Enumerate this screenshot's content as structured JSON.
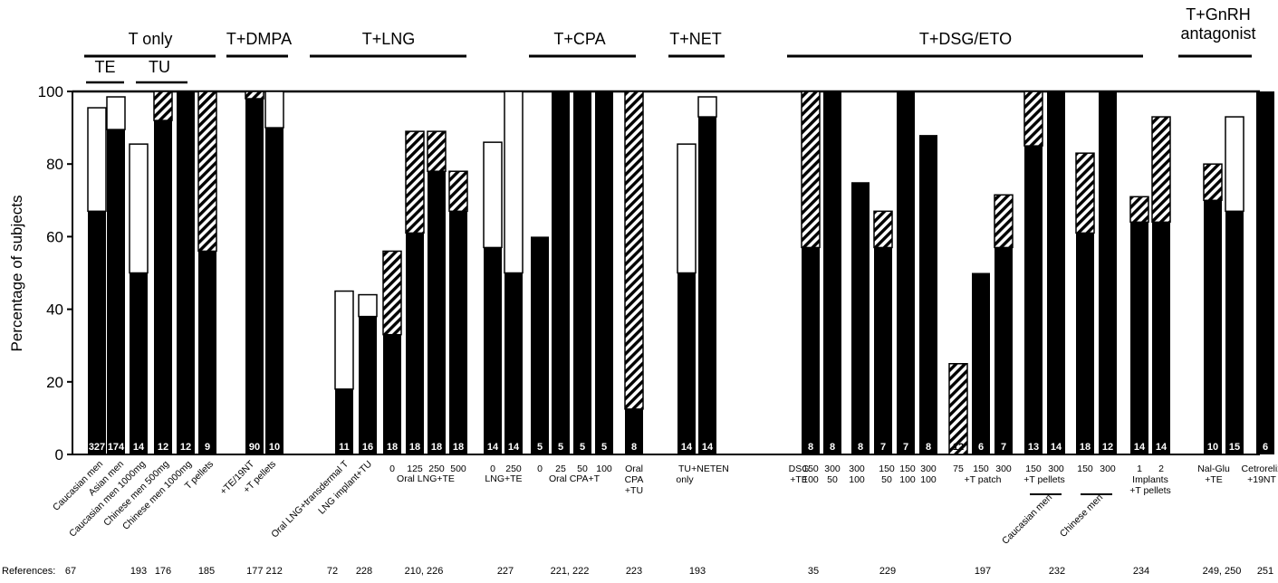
{
  "chart_data": {
    "type": "stacked-bar",
    "ylabel": "Percentage of subjects",
    "ylim": [
      0,
      100
    ],
    "yticks": [
      0,
      20,
      40,
      60,
      80,
      100
    ],
    "references_label": "References:",
    "groups": [
      {
        "title": "T only",
        "subgroups": [
          "TE",
          "TU"
        ]
      },
      {
        "title": "T+DMPA",
        "subgroups": []
      },
      {
        "title": "T+LNG",
        "subgroups": []
      },
      {
        "title": "T+CPA",
        "subgroups": []
      },
      {
        "title": "T+NET",
        "subgroups": []
      },
      {
        "title": "T+DSG/ETO",
        "subgroups": []
      },
      {
        "title": "T+GnRH antagonist",
        "title_lines": [
          "T+GnRH",
          "antagonist"
        ],
        "subgroups": []
      }
    ],
    "series": [
      {
        "name": "solid",
        "color": "#000000"
      },
      {
        "name": "hatched",
        "color": "#000000"
      },
      {
        "name": "open",
        "color": "#ffffff"
      }
    ],
    "bars": [
      {
        "n": "327",
        "solid": 67,
        "hatched": 0,
        "open": 28.5
      },
      {
        "n": "174",
        "solid": 89.5,
        "hatched": 0,
        "open": 9
      },
      {
        "n": "14",
        "solid": 50,
        "hatched": 0,
        "open": 35.5
      },
      {
        "n": "12",
        "solid": 92,
        "hatched": 8,
        "open": 0
      },
      {
        "n": "12",
        "solid": 100,
        "hatched": 0,
        "open": 0
      },
      {
        "n": "9",
        "solid": 56,
        "hatched": 44,
        "open": 0
      },
      {
        "n": "90",
        "solid": 98,
        "hatched": 2,
        "open": 0
      },
      {
        "n": "10",
        "solid": 90,
        "hatched": 0,
        "open": 10
      },
      {
        "n": "11",
        "solid": 18,
        "hatched": 0,
        "open": 27
      },
      {
        "n": "16",
        "solid": 38,
        "hatched": 0,
        "open": 6
      },
      {
        "n": "18",
        "solid": 33,
        "hatched": 23,
        "open": 0
      },
      {
        "n": "18",
        "solid": 61,
        "hatched": 28,
        "open": 0
      },
      {
        "n": "18",
        "solid": 78,
        "hatched": 11,
        "open": 0
      },
      {
        "n": "18",
        "solid": 67,
        "hatched": 11,
        "open": 0
      },
      {
        "n": "14",
        "solid": 57,
        "hatched": 0,
        "open": 29
      },
      {
        "n": "14",
        "solid": 50,
        "hatched": 0,
        "open": 50
      },
      {
        "n": "5",
        "solid": 60,
        "hatched": 0,
        "open": 0
      },
      {
        "n": "5",
        "solid": 100,
        "hatched": 0,
        "open": 0
      },
      {
        "n": "5",
        "solid": 100,
        "hatched": 0,
        "open": 0
      },
      {
        "n": "5",
        "solid": 100,
        "hatched": 0,
        "open": 0
      },
      {
        "n": "8",
        "solid": 12.5,
        "hatched": 87.5,
        "open": 0
      },
      {
        "n": "14",
        "solid": 50,
        "hatched": 0,
        "open": 35.5
      },
      {
        "n": "14",
        "solid": 93,
        "hatched": 0,
        "open": 5.5
      },
      {
        "n": "8",
        "solid": 57,
        "hatched": 43,
        "open": 0
      },
      {
        "n": "8",
        "solid": 100,
        "hatched": 0,
        "open": 0
      },
      {
        "n": "8",
        "solid": 75,
        "hatched": 0,
        "open": 0
      },
      {
        "n": "7",
        "solid": 57,
        "hatched": 10,
        "open": 0
      },
      {
        "n": "7",
        "solid": 100,
        "hatched": 0,
        "open": 0
      },
      {
        "n": "8",
        "solid": 88,
        "hatched": 0,
        "open": 0
      },
      {
        "n": "12",
        "solid": 0,
        "hatched": 25,
        "open": 0
      },
      {
        "n": "6",
        "solid": 50,
        "hatched": 0,
        "open": 0
      },
      {
        "n": "7",
        "solid": 57,
        "hatched": 14.5,
        "open": 0
      },
      {
        "n": "13",
        "solid": 85,
        "hatched": 15,
        "open": 0
      },
      {
        "n": "14",
        "solid": 100,
        "hatched": 0,
        "open": 0
      },
      {
        "n": "18",
        "solid": 61,
        "hatched": 22,
        "open": 0
      },
      {
        "n": "12",
        "solid": 100,
        "hatched": 0,
        "open": 0
      },
      {
        "n": "14",
        "solid": 64,
        "hatched": 7,
        "open": 0
      },
      {
        "n": "14",
        "solid": 64,
        "hatched": 29,
        "open": 0
      },
      {
        "n": "10",
        "solid": 70,
        "hatched": 10,
        "open": 0
      },
      {
        "n": "15",
        "solid": 67,
        "hatched": 0,
        "open": 26
      },
      {
        "n": "6",
        "solid": 100,
        "hatched": 0,
        "open": 0
      }
    ],
    "upright_labels": [
      "0",
      "125",
      "250",
      "500",
      "Oral LNG+TE",
      "0",
      "250",
      "LNG+TE",
      "0",
      "25",
      "50",
      "100",
      "Oral CPA+T",
      "Oral",
      "CPA",
      "+TU",
      "TU",
      "only",
      "+NETEN",
      "DSG",
      "+TE",
      "150",
      "100",
      "300",
      "50",
      "300",
      "100",
      "150",
      "50",
      "150",
      "100",
      "300",
      "100",
      "75",
      "150",
      "300",
      "+T patch",
      "150",
      "300",
      "+T pellets",
      "150",
      "300",
      "1",
      "2",
      "Implants",
      "+T pellets",
      "Nal-Glu",
      "+TE",
      "Cetrorelix",
      "+19NT"
    ],
    "rotated_labels": [
      "Caucasian men",
      "Asian men",
      "Caucasian men 1000mg",
      "Chinese men 500mg",
      "Chinese men 1000mg",
      "T pellets",
      "+TE/19NT",
      "+T pellets",
      "Oral LNG+transdermal T",
      "LNG implant+TU",
      "Caucasian men",
      "Chinese men"
    ],
    "references": [
      "67",
      "193",
      "176",
      "185",
      "177 212",
      "72",
      "228",
      "210, 226",
      "227",
      "221, 222",
      "223",
      "193",
      "35",
      "229",
      "197",
      "232",
      "234",
      "249, 250",
      "251"
    ]
  }
}
